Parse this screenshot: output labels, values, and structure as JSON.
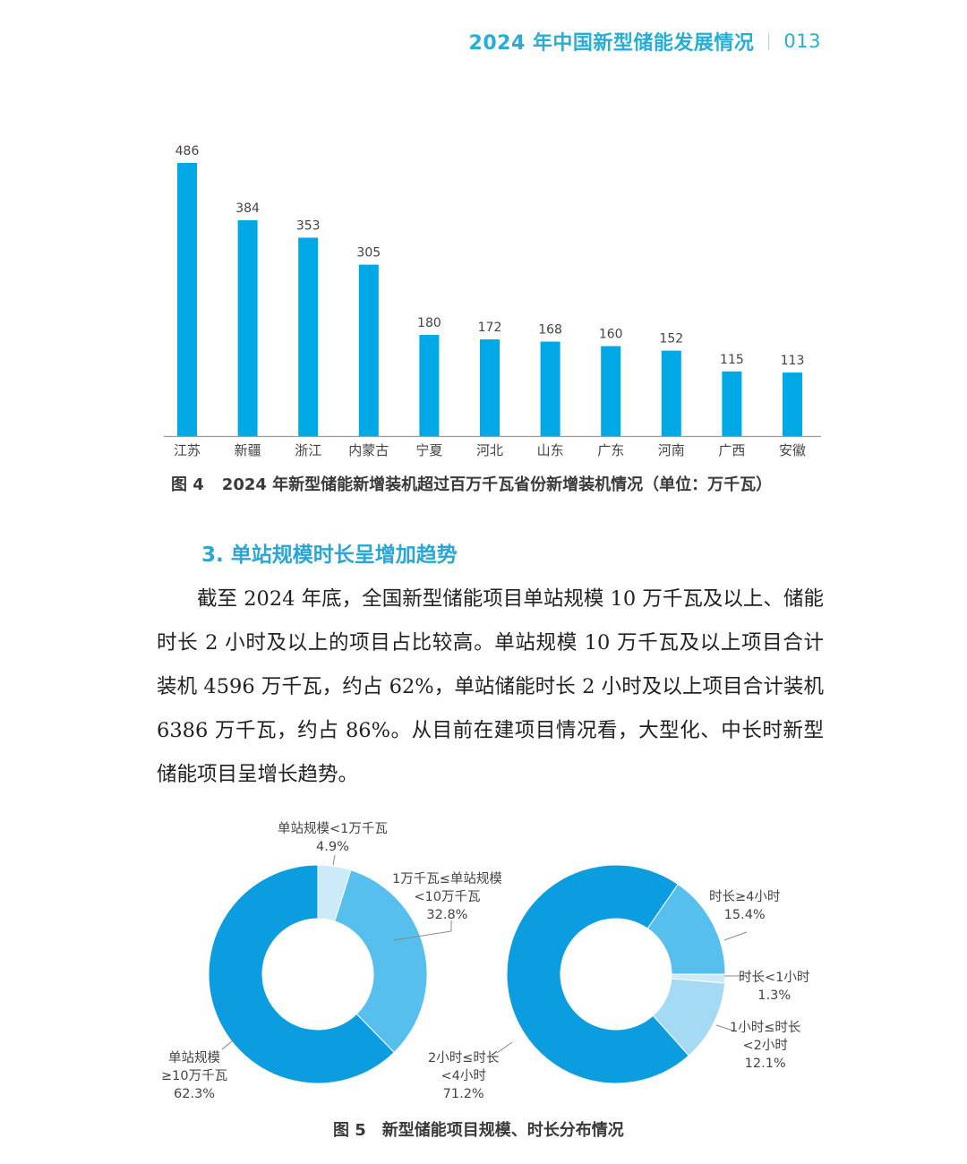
{
  "header": {
    "title": "2024 年中国新型储能发展情况",
    "page_number": "013",
    "color": "#25aed6"
  },
  "figure4": {
    "label": "图 4",
    "caption": "2024 年新型储能新增装机超过百万千瓦省份新增装机情况（单位：万千瓦）"
  },
  "section": {
    "title": "3. 单站规模时长呈增加趋势"
  },
  "body": {
    "paragraph": "截至 2024 年底，全国新型储能项目单站规模 10 万千瓦及以上、储能时长 2 小时及以上的项目占比较高。单站规模 10 万千瓦及以上项目合计装机 4596 万千瓦，约占 62%，单站储能时长 2 小时及以上项目合计装机 6386 万千瓦，约占 86%。从目前在建项目情况看，大型化、中长时新型储能项目呈增长趋势。"
  },
  "figure5": {
    "label": "图 5",
    "caption": "新型储能项目规模、时长分布情况"
  },
  "donut_labels": {
    "scale_lt1": {
      "name": "单站规模<1万千瓦",
      "pct": "4.9%"
    },
    "scale_1to10": {
      "name1": "1万千瓦≤单站规模",
      "name2": "<10万千瓦",
      "pct": "32.8%"
    },
    "scale_ge10": {
      "name1": "单站规模",
      "name2": "≥10万千瓦",
      "pct": "62.3%"
    },
    "dur_ge4": {
      "name": "时长≥4小时",
      "pct": "15.4%"
    },
    "dur_lt1": {
      "name": "时长<1小时",
      "pct": "1.3%"
    },
    "dur_1to2": {
      "name1": "1小时≤时长",
      "name2": "<2小时",
      "pct": "12.1%"
    },
    "dur_2to4": {
      "name1": "2小时≤时长",
      "name2": "<4小时",
      "pct": "71.2%"
    }
  },
  "chart_data": [
    {
      "type": "bar",
      "title": "2024 年新型储能新增装机超过百万千瓦省份新增装机情况（单位：万千瓦）",
      "categories": [
        "江苏",
        "新疆",
        "浙江",
        "内蒙古",
        "宁夏",
        "河北",
        "山东",
        "广东",
        "河南",
        "广西",
        "安徽"
      ],
      "values": [
        486,
        384,
        353,
        305,
        180,
        172,
        168,
        160,
        152,
        115,
        113
      ],
      "xlabel": "",
      "ylabel": "万千瓦",
      "grid": false,
      "data_labels": true,
      "color": "#00a8e6"
    },
    {
      "type": "pie",
      "subtype": "donut",
      "title": "新型储能项目规模分布",
      "categories": [
        "单站规模<1万千瓦",
        "1万千瓦≤单站规模<10万千瓦",
        "单站规模≥10万千瓦"
      ],
      "values": [
        4.9,
        32.8,
        62.3
      ],
      "colors": [
        "#cdeaf9",
        "#56bfee",
        "#0c9de0"
      ]
    },
    {
      "type": "pie",
      "subtype": "donut",
      "title": "新型储能项目时长分布",
      "categories": [
        "时长≥4小时",
        "时长<1小时",
        "1小时≤时长<2小时",
        "2小时≤时长<4小时"
      ],
      "values": [
        15.4,
        1.3,
        12.1,
        71.2
      ],
      "colors": [
        "#56bfee",
        "#cdeaf9",
        "#a5daf5",
        "#0c9de0"
      ]
    }
  ]
}
